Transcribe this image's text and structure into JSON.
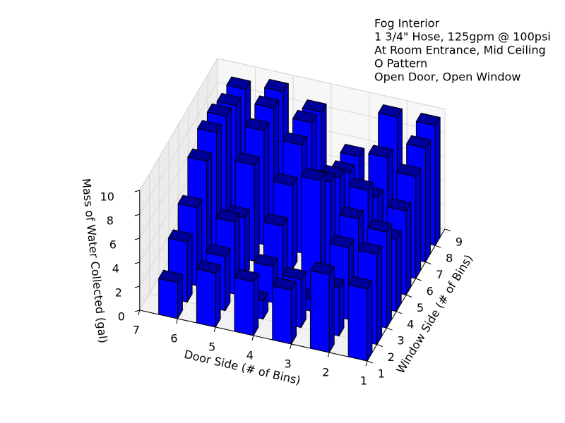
{
  "chart_data": {
    "type": "bar3d",
    "title_lines": [
      "Fog Interior",
      "1 3/4\" Hose, 125gpm @ 100psi",
      "At Room Entrance, Mid Ceiling",
      "O Pattern",
      "Open Door, Open Window"
    ],
    "xlabel": "Door Side (# of Bins)",
    "ylabel": "Window Side (# of Bins)",
    "zlabel": "Mass of Water Collected (gal)",
    "xlim": [
      1,
      7
    ],
    "xticks": [
      1,
      2,
      3,
      4,
      5,
      6,
      7
    ],
    "ylim": [
      1,
      9
    ],
    "yticks": [
      1,
      2,
      3,
      4,
      5,
      6,
      7,
      8,
      9
    ],
    "zlim": [
      0,
      10
    ],
    "zticks": [
      0,
      2,
      4,
      6,
      8,
      10
    ],
    "color": "#0000ff",
    "grid": true,
    "values": [
      [
        6,
        6.5,
        4.5,
        4.5,
        4.5,
        3
      ],
      [
        7.5,
        4,
        4,
        1.5,
        4.5,
        5
      ],
      [
        8,
        6,
        1,
        3,
        6,
        6.5
      ],
      [
        6,
        7,
        9.5,
        5,
        5,
        9
      ],
      [
        7,
        8,
        8,
        7,
        8,
        10
      ],
      [
        8.5,
        6,
        7,
        9,
        9.5,
        10
      ],
      [
        9.5,
        8,
        6,
        9.5,
        10,
        9.5
      ],
      [
        10,
        10,
        6,
        9,
        10,
        9.5
      ]
    ]
  }
}
